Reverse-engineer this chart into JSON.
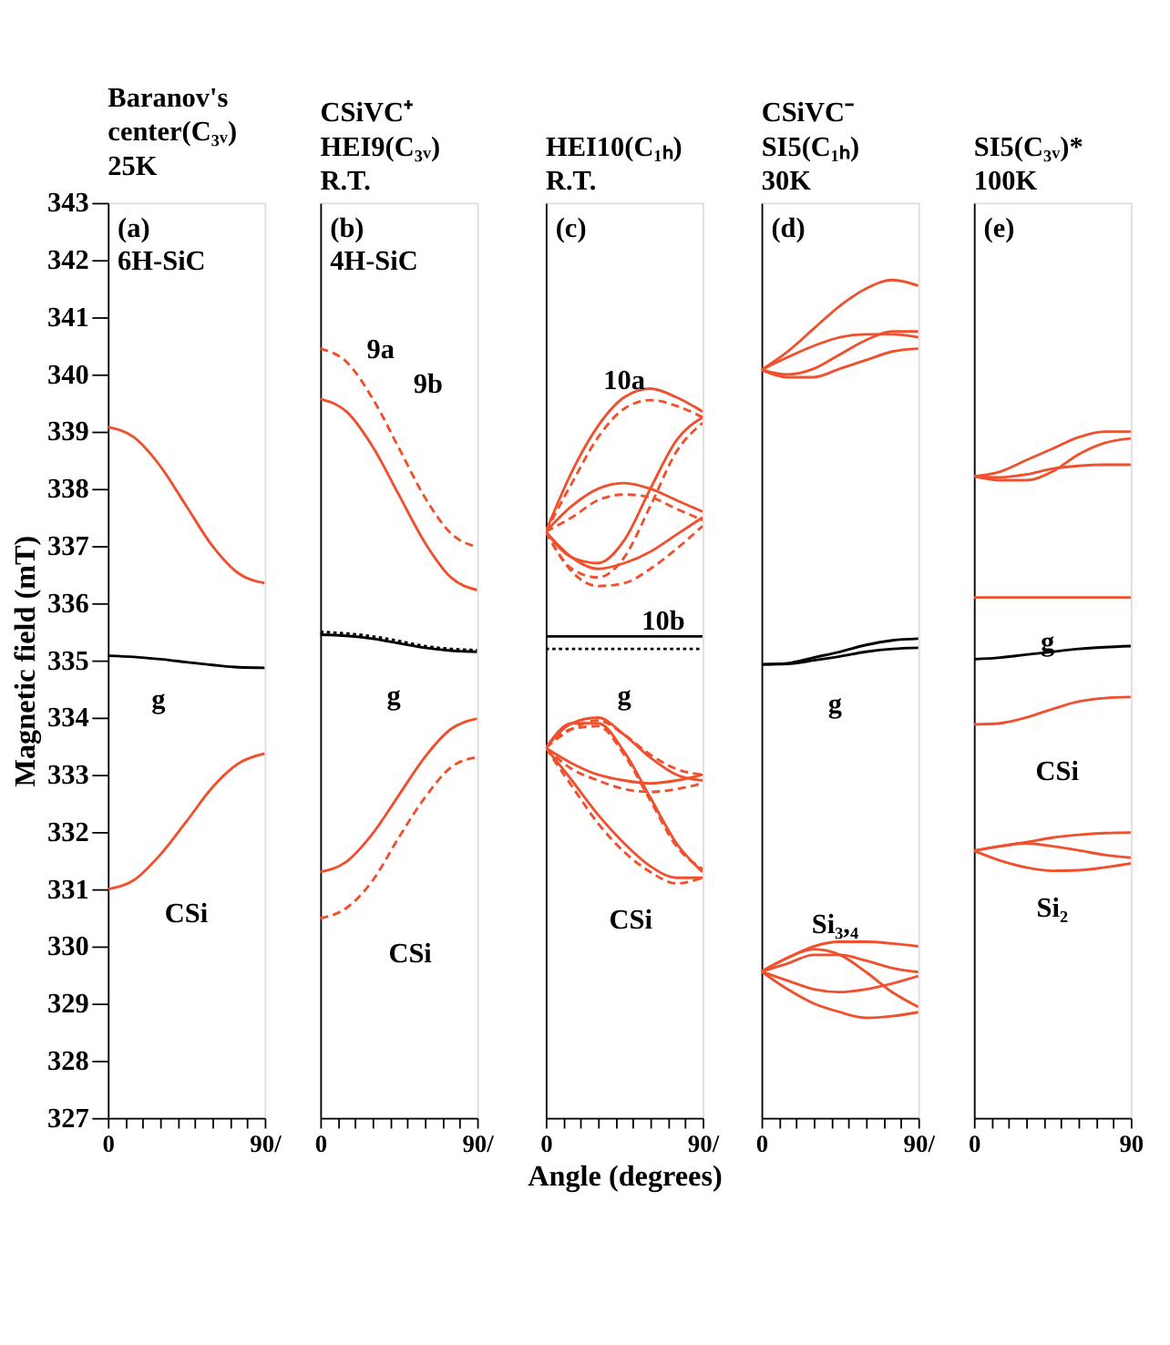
{
  "chart_data": [
    {
      "type": "line",
      "title": [
        "Baranov's",
        "center(C₃ᵥ)",
        "25K"
      ],
      "ylabel": "Magnetic field (mT)",
      "x": [
        0,
        15,
        30,
        45,
        60,
        75,
        90
      ],
      "xlim": [
        0,
        90
      ],
      "xticks": [
        {
          "value": 0,
          "label": "0"
        },
        {
          "value": 10,
          "label": null
        },
        {
          "value": 20,
          "label": null
        },
        {
          "value": 30,
          "label": null
        },
        {
          "value": 40,
          "label": null
        },
        {
          "value": 50,
          "label": null
        },
        {
          "value": 60,
          "label": null
        },
        {
          "value": 70,
          "label": null
        },
        {
          "value": 80,
          "label": null
        },
        {
          "value": 90,
          "label": "90/"
        }
      ],
      "ylim": [
        327,
        343
      ],
      "yticks": [
        327,
        328,
        329,
        330,
        331,
        332,
        333,
        334,
        335,
        336,
        337,
        338,
        339,
        340,
        341,
        342,
        343
      ],
      "marker": "none",
      "line_style": "solid",
      "annotations": [
        "(a)",
        "6H-SiC",
        "g",
        "CSi"
      ],
      "series": [
        {
          "color": "#f0502d",
          "values": [
            339.08,
            338.9,
            338.4,
            337.7,
            337.0,
            336.52,
            336.35
          ]
        },
        {
          "color": "#f0502d",
          "values": [
            331.0,
            331.16,
            331.6,
            332.18,
            332.78,
            333.2,
            333.37
          ]
        },
        {
          "color": "#000000",
          "values": [
            335.08,
            335.06,
            335.02,
            334.97,
            334.92,
            334.88,
            334.87
          ]
        }
      ]
    },
    {
      "type": "line",
      "title": [
        "CSiVC⁺",
        "HEI9(C₃ᵥ)",
        "R.T."
      ],
      "x": [
        0,
        15,
        30,
        45,
        60,
        75,
        90
      ],
      "xlim": [
        0,
        90
      ],
      "xticks": [
        {
          "value": 0,
          "label": "0"
        },
        {
          "value": 10,
          "label": null
        },
        {
          "value": 20,
          "label": null
        },
        {
          "value": 30,
          "label": null
        },
        {
          "value": 40,
          "label": null
        },
        {
          "value": 50,
          "label": null
        },
        {
          "value": 60,
          "label": null
        },
        {
          "value": 70,
          "label": null
        },
        {
          "value": 80,
          "label": null
        },
        {
          "value": 90,
          "label": "90/"
        }
      ],
      "ylim": [
        327,
        343
      ],
      "yticks": [
        327,
        328,
        329,
        330,
        331,
        332,
        333,
        334,
        335,
        336,
        337,
        338,
        339,
        340,
        341,
        342,
        343
      ],
      "tick_labels": "x",
      "marker": "none",
      "line_style": "solid",
      "annotations": [
        "(b)",
        "4H-SiC",
        "9a",
        "9b",
        "g",
        "CSi"
      ],
      "series": [
        {
          "color": "#f0502d",
          "values": [
            339.57,
            339.35,
            338.74,
            337.9,
            337.06,
            336.45,
            336.23
          ]
        },
        {
          "color": "#f0502d",
          "line_style": "dashed",
          "values": [
            340.45,
            340.22,
            339.58,
            338.72,
            337.85,
            337.22,
            336.98
          ]
        },
        {
          "color": "#f0502d",
          "values": [
            331.3,
            331.48,
            331.97,
            332.64,
            333.31,
            333.8,
            333.98
          ]
        },
        {
          "color": "#f0502d",
          "line_style": "dashed",
          "values": [
            330.49,
            330.67,
            331.15,
            331.9,
            332.6,
            333.13,
            333.31
          ]
        },
        {
          "color": "#000000",
          "values": [
            335.45,
            335.43,
            335.38,
            335.3,
            335.22,
            335.17,
            335.15
          ]
        },
        {
          "color": "#000000",
          "line_style": "dotted",
          "values": [
            335.5,
            335.47,
            335.42,
            335.34,
            335.25,
            335.2,
            335.18
          ]
        }
      ]
    },
    {
      "type": "line",
      "title": [
        "HEI10(C₁ₕ)",
        "R.T."
      ],
      "xlabel": "Angle (degrees)",
      "x": [
        0,
        15,
        30,
        45,
        60,
        75,
        90
      ],
      "xlim": [
        0,
        90
      ],
      "xticks": [
        {
          "value": 0,
          "label": "0"
        },
        {
          "value": 10,
          "label": null
        },
        {
          "value": 20,
          "label": null
        },
        {
          "value": 30,
          "label": null
        },
        {
          "value": 40,
          "label": null
        },
        {
          "value": 50,
          "label": null
        },
        {
          "value": 60,
          "label": null
        },
        {
          "value": 70,
          "label": null
        },
        {
          "value": 80,
          "label": null
        },
        {
          "value": 90,
          "label": "90/"
        }
      ],
      "ylim": [
        327,
        343
      ],
      "yticks": [
        327,
        328,
        329,
        330,
        331,
        332,
        333,
        334,
        335,
        336,
        337,
        338,
        339,
        340,
        341,
        342,
        343
      ],
      "tick_labels": "x",
      "marker": "none",
      "line_style": "solid",
      "annotations": [
        "(c)",
        "10a",
        "10b",
        "g",
        "CSi"
      ],
      "series": [
        {
          "color": "#f0502d",
          "values": [
            337.25,
            338.3,
            339.1,
            339.6,
            339.75,
            339.6,
            339.35
          ]
        },
        {
          "color": "#f0502d",
          "values": [
            337.25,
            336.8,
            336.7,
            337.1,
            338.0,
            338.85,
            339.25
          ]
        },
        {
          "color": "#f0502d",
          "values": [
            337.25,
            337.7,
            338.0,
            338.1,
            338.0,
            337.8,
            337.6
          ]
        },
        {
          "color": "#f0502d",
          "values": [
            337.25,
            336.8,
            336.6,
            336.7,
            336.9,
            337.2,
            337.5
          ]
        },
        {
          "color": "#f0502d",
          "line_style": "dashed",
          "values": [
            337.25,
            338.1,
            338.9,
            339.4,
            339.55,
            339.45,
            339.25
          ]
        },
        {
          "color": "#f0502d",
          "line_style": "dashed",
          "values": [
            337.25,
            336.6,
            336.45,
            336.8,
            337.7,
            338.65,
            339.15
          ]
        },
        {
          "color": "#f0502d",
          "line_style": "dashed",
          "values": [
            337.25,
            337.5,
            337.8,
            337.9,
            337.85,
            337.65,
            337.45
          ]
        },
        {
          "color": "#f0502d",
          "line_style": "dashed",
          "values": [
            337.25,
            336.55,
            336.3,
            336.35,
            336.6,
            336.95,
            337.35
          ]
        },
        {
          "color": "#f0502d",
          "values": [
            333.47,
            333.9,
            334.0,
            333.7,
            333.3,
            333.0,
            332.9
          ]
        },
        {
          "color": "#f0502d",
          "values": [
            333.47,
            333.2,
            333.0,
            332.9,
            332.85,
            332.9,
            333.0
          ]
        },
        {
          "color": "#f0502d",
          "values": [
            333.47,
            333.9,
            333.9,
            333.4,
            332.6,
            331.8,
            331.3
          ]
        },
        {
          "color": "#f0502d",
          "values": [
            333.47,
            332.9,
            332.3,
            331.8,
            331.4,
            331.2,
            331.2
          ]
        },
        {
          "color": "#f0502d",
          "line_style": "dashed",
          "values": [
            333.47,
            333.8,
            333.95,
            333.7,
            333.35,
            333.1,
            333.0
          ]
        },
        {
          "color": "#f0502d",
          "line_style": "dashed",
          "values": [
            333.47,
            333.1,
            332.9,
            332.75,
            332.7,
            332.75,
            332.85
          ]
        },
        {
          "color": "#f0502d",
          "line_style": "dashed",
          "values": [
            333.47,
            333.8,
            333.85,
            333.35,
            332.55,
            331.75,
            331.35
          ]
        },
        {
          "color": "#f0502d",
          "line_style": "dashed",
          "values": [
            333.47,
            332.8,
            332.15,
            331.65,
            331.3,
            331.1,
            331.2
          ]
        },
        {
          "color": "#000000",
          "values": [
            335.42,
            335.42,
            335.42,
            335.42,
            335.42,
            335.42,
            335.42
          ]
        },
        {
          "color": "#000000",
          "line_style": "dotted",
          "values": [
            335.2,
            335.2,
            335.2,
            335.2,
            335.2,
            335.2,
            335.2
          ]
        }
      ]
    },
    {
      "type": "line",
      "title": [
        "CSiVC⁻",
        "SI5(C₁ₕ)",
        "30K"
      ],
      "x": [
        0,
        15,
        30,
        45,
        60,
        75,
        90
      ],
      "xlim": [
        0,
        90
      ],
      "xticks": [
        {
          "value": 0,
          "label": "0"
        },
        {
          "value": 10,
          "label": null
        },
        {
          "value": 20,
          "label": null
        },
        {
          "value": 30,
          "label": null
        },
        {
          "value": 40,
          "label": null
        },
        {
          "value": 50,
          "label": null
        },
        {
          "value": 60,
          "label": null
        },
        {
          "value": 70,
          "label": null
        },
        {
          "value": 80,
          "label": null
        },
        {
          "value": 90,
          "label": "90/"
        }
      ],
      "ylim": [
        327,
        343
      ],
      "yticks": [
        327,
        328,
        329,
        330,
        331,
        332,
        333,
        334,
        335,
        336,
        337,
        338,
        339,
        340,
        341,
        342,
        343
      ],
      "tick_labels": "x",
      "marker": "none",
      "line_style": "solid",
      "annotations": [
        "(d)",
        "g",
        "Si₃,₄"
      ],
      "series": [
        {
          "color": "#f0502d",
          "values": [
            340.08,
            340.4,
            340.8,
            341.2,
            341.5,
            341.65,
            341.55
          ]
        },
        {
          "color": "#f0502d",
          "values": [
            340.08,
            340.0,
            340.1,
            340.35,
            340.6,
            340.75,
            340.75
          ]
        },
        {
          "color": "#f0502d",
          "values": [
            340.08,
            340.3,
            340.5,
            340.65,
            340.7,
            340.7,
            340.65
          ]
        },
        {
          "color": "#f0502d",
          "values": [
            340.08,
            339.95,
            339.95,
            340.1,
            340.25,
            340.4,
            340.45
          ]
        },
        {
          "color": "#000000",
          "values": [
            334.93,
            334.95,
            335.05,
            335.15,
            335.27,
            335.35,
            335.38
          ]
        },
        {
          "color": "#000000",
          "values": [
            334.93,
            334.94,
            335.0,
            335.07,
            335.15,
            335.2,
            335.22
          ]
        },
        {
          "color": "#f0502d",
          "values": [
            329.56,
            329.8,
            330.0,
            330.08,
            330.08,
            330.05,
            330.0
          ]
        },
        {
          "color": "#f0502d",
          "values": [
            329.56,
            329.8,
            329.95,
            329.85,
            329.55,
            329.2,
            328.94
          ]
        },
        {
          "color": "#f0502d",
          "values": [
            329.56,
            329.25,
            329.0,
            328.85,
            328.75,
            328.78,
            328.85
          ]
        },
        {
          "color": "#f0502d",
          "values": [
            329.56,
            329.4,
            329.25,
            329.2,
            329.25,
            329.35,
            329.48
          ]
        },
        {
          "color": "#f0502d",
          "values": [
            329.56,
            329.7,
            329.85,
            329.85,
            329.75,
            329.62,
            329.55
          ]
        }
      ]
    },
    {
      "type": "line",
      "title": [
        "SI5(C₃ᵥ)*",
        "100K"
      ],
      "x": [
        0,
        15,
        30,
        45,
        60,
        75,
        90
      ],
      "xlim": [
        0,
        90
      ],
      "xticks": [
        {
          "value": 0,
          "label": "0"
        },
        {
          "value": 10,
          "label": null
        },
        {
          "value": 20,
          "label": null
        },
        {
          "value": 30,
          "label": null
        },
        {
          "value": 40,
          "label": null
        },
        {
          "value": 50,
          "label": null
        },
        {
          "value": 60,
          "label": null
        },
        {
          "value": 70,
          "label": null
        },
        {
          "value": 80,
          "label": null
        },
        {
          "value": 90,
          "label": "90"
        }
      ],
      "ylim": [
        327,
        343
      ],
      "yticks": [
        327,
        328,
        329,
        330,
        331,
        332,
        333,
        334,
        335,
        336,
        337,
        338,
        339,
        340,
        341,
        342,
        343
      ],
      "tick_labels": "x",
      "marker": "none",
      "line_style": "solid",
      "annotations": [
        "(e)",
        "g",
        "CSi",
        "Si₂"
      ],
      "series": [
        {
          "color": "#f0502d",
          "values": [
            338.22,
            338.3,
            338.5,
            338.7,
            338.9,
            339.0,
            339.0
          ]
        },
        {
          "color": "#f0502d",
          "values": [
            338.22,
            338.15,
            338.15,
            338.3,
            338.6,
            338.8,
            338.88
          ]
        },
        {
          "color": "#f0502d",
          "values": [
            338.22,
            338.2,
            338.25,
            338.35,
            338.4,
            338.42,
            338.42
          ]
        },
        {
          "color": "#f0502d",
          "values": [
            336.1,
            336.1,
            336.1,
            336.1,
            336.1,
            336.1,
            336.1
          ]
        },
        {
          "color": "#000000",
          "values": [
            335.02,
            335.05,
            335.1,
            335.15,
            335.2,
            335.23,
            335.25
          ]
        },
        {
          "color": "#f0502d",
          "values": [
            333.88,
            333.9,
            334.0,
            334.15,
            334.28,
            334.34,
            334.36
          ]
        },
        {
          "color": "#f0502d",
          "values": [
            331.67,
            331.75,
            331.82,
            331.9,
            331.95,
            331.98,
            331.99
          ]
        },
        {
          "color": "#f0502d",
          "values": [
            331.67,
            331.5,
            331.38,
            331.32,
            331.33,
            331.38,
            331.45
          ]
        },
        {
          "color": "#f0502d",
          "values": [
            331.67,
            331.75,
            331.8,
            331.75,
            331.68,
            331.6,
            331.55
          ]
        }
      ]
    }
  ]
}
